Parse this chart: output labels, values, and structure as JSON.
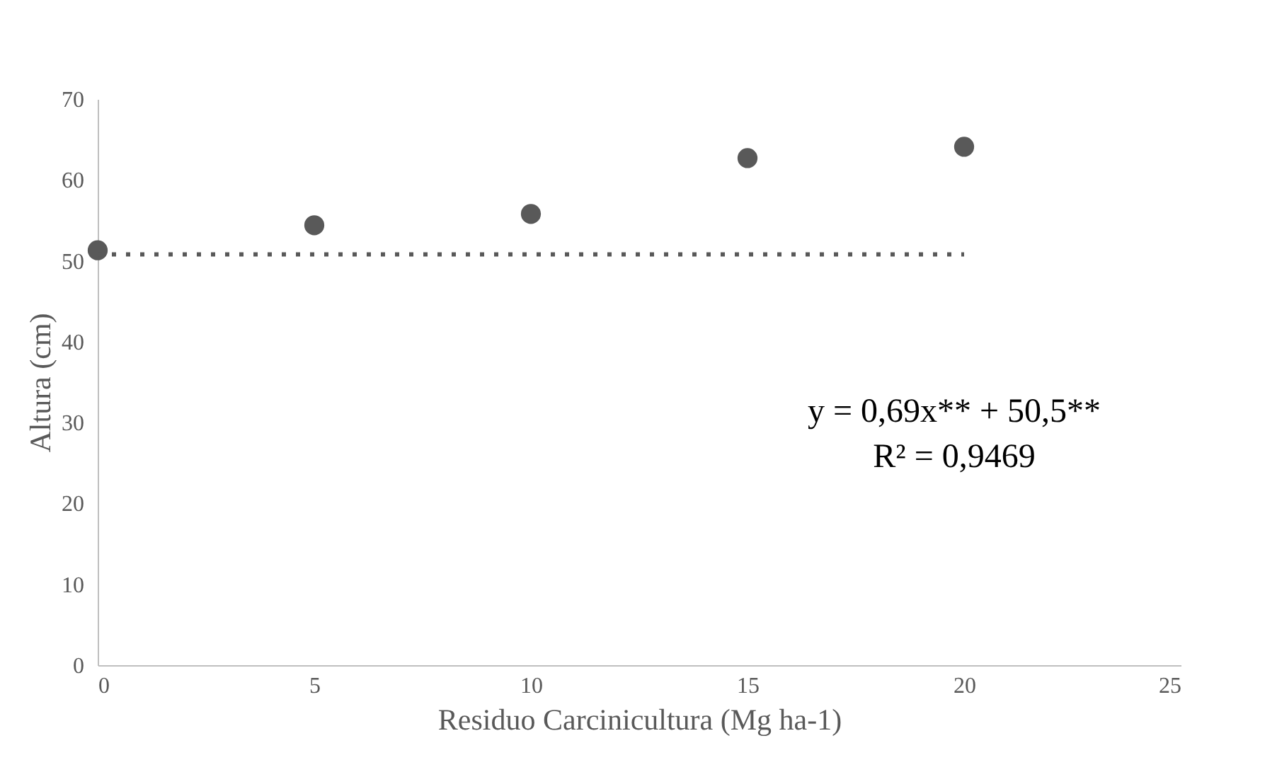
{
  "chart_data": {
    "type": "scatter",
    "xlabel": "Residuo Carcinicultura (Mg ha-1)",
    "ylabel": "Altura (cm)",
    "xlim": [
      0,
      25
    ],
    "xticks": [
      0,
      5,
      10,
      15,
      20,
      25
    ],
    "ylim": [
      0,
      70
    ],
    "yticks": [
      0,
      10,
      20,
      30,
      40,
      50,
      60,
      70
    ],
    "grid": false,
    "annotations": [
      "y = 0,69x** + 50,5**",
      "R² = 0,9469"
    ],
    "series": [
      {
        "color": "#595959",
        "marker": "circle",
        "x": [
          0,
          5,
          10,
          15,
          20
        ],
        "values": [
          51.3,
          54.4,
          55.8,
          62.7,
          64.1
        ]
      },
      {
        "type": "line",
        "color": "#595959",
        "line_style": "dotted",
        "x": [
          0,
          20
        ],
        "values": [
          50.8,
          50.8
        ]
      }
    ]
  }
}
